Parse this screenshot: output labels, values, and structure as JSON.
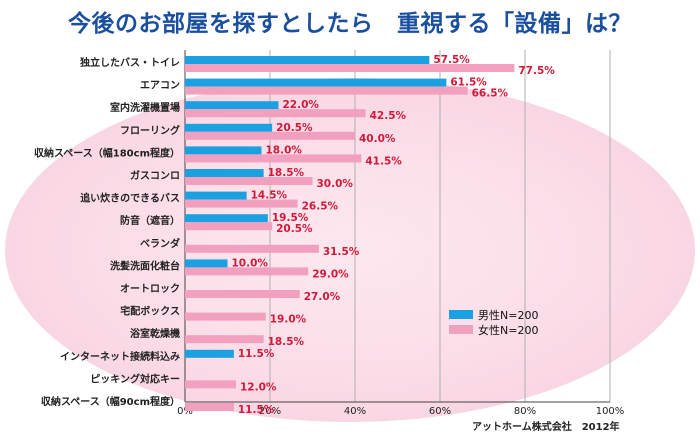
{
  "title": "今後のお部屋を探すとしたら　重視する「設備」は？",
  "source": "アットホーム株式会社　2012年",
  "colors": {
    "male": "#1ba1e2",
    "female": "#f2a0bf",
    "value_text": "#d11a3a",
    "title": "#1a4fa0"
  },
  "chart_data": {
    "type": "bar",
    "orientation": "horizontal",
    "categories": [
      "独立したバス・トイレ",
      "エアコン",
      "室内洗濯機置場",
      "フローリング",
      "収納スペース（幅180cm程度）",
      "ガスコンロ",
      "追い炊きのできるバス",
      "防音（遮音）",
      "ベランダ",
      "洗髪洗面化粧台",
      "オートロック",
      "宅配ボックス",
      "浴室乾燥機",
      "インターネット接続料込み",
      "ピッキング対応キー",
      "収納スペース（幅90cm程度）"
    ],
    "series": [
      {
        "name": "男性N=200",
        "values": [
          57.5,
          61.5,
          22.0,
          20.5,
          18.0,
          18.5,
          14.5,
          19.5,
          null,
          10.0,
          null,
          null,
          null,
          11.5,
          null,
          null
        ],
        "labels": [
          "57.5%",
          "61.5%",
          "22.0%",
          "20.5%",
          "18.0%",
          "18.5%",
          "14.5%",
          "19.5%",
          "",
          "10.0%",
          "",
          "",
          "",
          "11.5%",
          "",
          ""
        ]
      },
      {
        "name": "女性N=200",
        "values": [
          77.5,
          66.5,
          42.5,
          40.0,
          41.5,
          30.0,
          26.5,
          20.5,
          31.5,
          29.0,
          27.0,
          19.0,
          18.5,
          null,
          12.0,
          11.5
        ],
        "labels": [
          "77.5%",
          "66.5%",
          "42.5%",
          "40.0%",
          "41.5%",
          "30.0%",
          "26.5%",
          "20.5%",
          "31.5%",
          "29.0%",
          "27.0%",
          "19.0%",
          "18.5%",
          "",
          "12.0%",
          "11.5%"
        ]
      }
    ],
    "xlim": [
      0,
      100
    ],
    "xticks": [
      "0%",
      "20%",
      "40%",
      "60%",
      "80%",
      "100%"
    ],
    "grid": true,
    "legend_position": "lower-right"
  }
}
